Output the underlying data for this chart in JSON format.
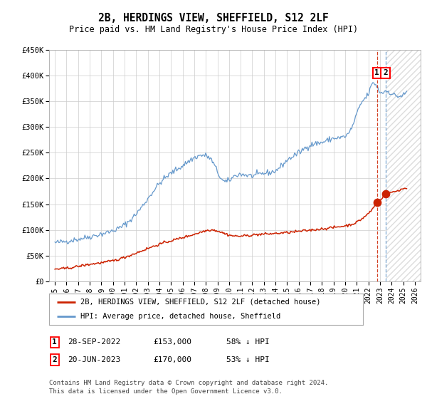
{
  "title": "2B, HERDINGS VIEW, SHEFFIELD, S12 2LF",
  "subtitle": "Price paid vs. HM Land Registry's House Price Index (HPI)",
  "ylim": [
    0,
    450000
  ],
  "xlim_start": 1994.5,
  "xlim_end": 2026.5,
  "yticks": [
    0,
    50000,
    100000,
    150000,
    200000,
    250000,
    300000,
    350000,
    400000,
    450000
  ],
  "ytick_labels": [
    "£0",
    "£50K",
    "£100K",
    "£150K",
    "£200K",
    "£250K",
    "£300K",
    "£350K",
    "£400K",
    "£450K"
  ],
  "xticks": [
    1995,
    1996,
    1997,
    1998,
    1999,
    2000,
    2001,
    2002,
    2003,
    2004,
    2005,
    2006,
    2007,
    2008,
    2009,
    2010,
    2011,
    2012,
    2013,
    2014,
    2015,
    2016,
    2017,
    2018,
    2019,
    2020,
    2021,
    2022,
    2023,
    2024,
    2025,
    2026
  ],
  "hpi_color": "#6699cc",
  "price_color": "#cc2200",
  "vline1_x": 2022.745,
  "vline2_x": 2023.466,
  "sale1_price": 153000,
  "sale2_price": 170000,
  "sale1_label": "1",
  "sale2_label": "2",
  "sale1_date": "28-SEP-2022",
  "sale2_date": "20-JUN-2023",
  "sale1_pct": "58% ↓ HPI",
  "sale2_pct": "53% ↓ HPI",
  "legend_line1": "2B, HERDINGS VIEW, SHEFFIELD, S12 2LF (detached house)",
  "legend_line2": "HPI: Average price, detached house, Sheffield",
  "footnote1": "Contains HM Land Registry data © Crown copyright and database right 2024.",
  "footnote2": "This data is licensed under the Open Government Licence v3.0.",
  "bg_color": "#ffffff",
  "grid_color": "#cccccc",
  "hatch_color": "#bbbbbb",
  "hpi_anchors_t": [
    1995.0,
    1997.0,
    1999.0,
    2001.0,
    2002.5,
    2004.0,
    2005.0,
    2006.0,
    2007.0,
    2007.8,
    2008.5,
    2009.5,
    2010.5,
    2012.0,
    2013.0,
    2014.0,
    2015.0,
    2016.0,
    2017.0,
    2018.0,
    2019.0,
    2020.0,
    2020.5,
    2021.0,
    2021.5,
    2022.0,
    2022.4,
    2022.7,
    2023.0,
    2023.5,
    2024.0,
    2024.5,
    2025.0
  ],
  "hpi_anchors_v": [
    75000,
    82000,
    92000,
    110000,
    145000,
    190000,
    210000,
    225000,
    240000,
    245000,
    235000,
    195000,
    205000,
    205000,
    210000,
    215000,
    235000,
    250000,
    265000,
    270000,
    278000,
    282000,
    295000,
    325000,
    350000,
    365000,
    385000,
    380000,
    368000,
    370000,
    365000,
    360000,
    362000
  ],
  "price_anchors_t": [
    1995.0,
    1996.5,
    1998.0,
    2000.0,
    2002.0,
    2004.0,
    2006.0,
    2007.5,
    2008.5,
    2010.0,
    2012.0,
    2014.0,
    2016.0,
    2018.0,
    2020.0,
    2021.0,
    2021.8,
    2022.4,
    2022.745,
    2023.0,
    2023.466,
    2024.0,
    2024.5,
    2025.0
  ],
  "price_anchors_v": [
    24000,
    27000,
    33000,
    40000,
    55000,
    72000,
    85000,
    95000,
    100000,
    90000,
    90000,
    93000,
    97000,
    102000,
    108000,
    115000,
    128000,
    142000,
    153000,
    158000,
    170000,
    173000,
    176000,
    180000
  ]
}
